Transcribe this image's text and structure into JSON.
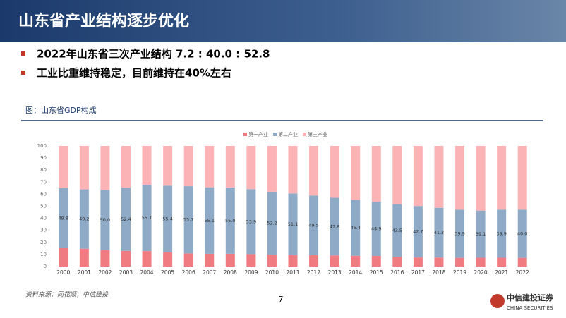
{
  "header": {
    "title": "山东省产业结构逐步优化"
  },
  "bullets": [
    "2022年山东省三次产业结构 7.2 : 40.0 : 52.8",
    "工业比重维持稳定，目前维持在40%左右"
  ],
  "caption": "图：山东省GDP构成",
  "source": "资料来源：同花顺，中信建投",
  "page_number": "7",
  "logo": {
    "name": "中信建投证券",
    "english": "CHINA SECURITIES"
  },
  "chart_data": {
    "type": "stacked_bar",
    "categories": [
      "2000",
      "2001",
      "2002",
      "2003",
      "2004",
      "2005",
      "2006",
      "2007",
      "2008",
      "2009",
      "2010",
      "2011",
      "2012",
      "2013",
      "2014",
      "2015",
      "2016",
      "2017",
      "2018",
      "2019",
      "2020",
      "2021",
      "2022"
    ],
    "series": [
      {
        "name": "第一产业",
        "color": "#f07b80",
        "values": [
          15.2,
          14.8,
          13.5,
          13.0,
          12.8,
          11.7,
          10.9,
          10.6,
          10.6,
          10.3,
          9.9,
          9.5,
          9.4,
          9.2,
          8.9,
          8.8,
          8.2,
          7.5,
          7.4,
          7.2,
          7.3,
          7.3,
          7.2
        ]
      },
      {
        "name": "第二产业",
        "color": "#8eaac6",
        "values": [
          49.8,
          49.2,
          50.0,
          52.4,
          55.1,
          55.4,
          55.7,
          55.1,
          55.0,
          53.9,
          52.2,
          51.1,
          49.5,
          47.8,
          46.4,
          44.9,
          43.5,
          42.7,
          41.3,
          39.9,
          39.1,
          39.9,
          40.0
        ],
        "value_labels": [
          "49.8",
          "49.2",
          "50.0",
          "52.4",
          "55.1",
          "55.4",
          "55.7",
          "55.1",
          "55.0",
          "53.9",
          "52.2",
          "51.1",
          "49.5",
          "47.8",
          "46.4",
          "44.9",
          "43.5",
          "42.7",
          "41.3",
          "39.9",
          "39.1",
          "39.9",
          "40.0"
        ]
      },
      {
        "name": "第三产业",
        "color": "#fbb3b6",
        "values": [
          35.0,
          36.0,
          36.5,
          34.6,
          32.1,
          32.9,
          33.4,
          34.3,
          34.4,
          35.8,
          37.9,
          39.4,
          41.1,
          43.0,
          44.7,
          46.3,
          48.3,
          49.8,
          51.3,
          52.9,
          53.6,
          52.8,
          52.8
        ]
      }
    ],
    "ylim": [
      0,
      100
    ],
    "yticks": [
      0,
      10,
      20,
      30,
      40,
      50,
      60,
      70,
      80,
      90,
      100
    ],
    "grid": false
  }
}
